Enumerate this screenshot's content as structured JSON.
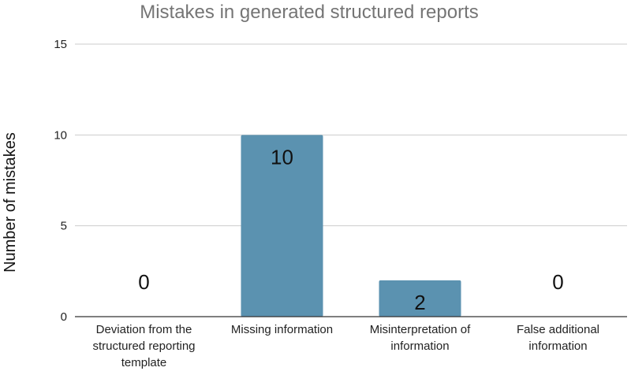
{
  "chart_data": {
    "type": "bar",
    "title": "Mistakes in generated structured reports",
    "xlabel": "",
    "ylabel": "Number of mistakes",
    "categories": [
      [
        "Deviation from the",
        "structured reporting",
        "template"
      ],
      [
        "Missing information"
      ],
      [
        "Misinterpretation of",
        "information"
      ],
      [
        "False additional",
        "information"
      ]
    ],
    "values": [
      0,
      10,
      2,
      0
    ],
    "data_labels": [
      "0",
      "10",
      "2",
      "0"
    ],
    "ylim": [
      0,
      15
    ],
    "yticks": [
      0,
      5,
      10,
      15
    ],
    "grid": true,
    "legend": "none",
    "colors": {
      "bar": "#5b92b0",
      "grid": "#cccccc",
      "axis": "#333333"
    }
  }
}
